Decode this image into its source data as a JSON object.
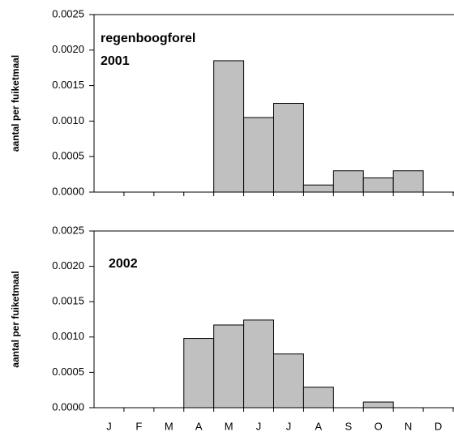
{
  "chart_data": [
    {
      "type": "bar",
      "ylabel": "aantal per fuiketmaal",
      "annotations": [
        "regenboogforel",
        "2001"
      ],
      "categories": [
        null,
        null,
        null,
        null,
        null,
        null,
        null,
        null,
        null,
        null,
        null,
        null
      ],
      "values": [
        0,
        0,
        0,
        0,
        0.00185,
        0.00105,
        0.00125,
        0.0001,
        0.0003,
        0.0002,
        0.0003,
        0
      ],
      "color": "#c0c0c0",
      "ylim": [
        0,
        0.0025
      ],
      "yticks": [
        {
          "value": 0,
          "label": "0.0000"
        },
        {
          "value": 0.0005,
          "label": "0.0005"
        },
        {
          "value": 0.001,
          "label": "0.0010"
        },
        {
          "value": 0.0015,
          "label": "0.0015"
        },
        {
          "value": 0.002,
          "label": "0.0020"
        },
        {
          "value": 0.0025,
          "label": "0.0025"
        }
      ]
    },
    {
      "type": "bar",
      "ylabel": "aantal per fuiketmaal",
      "annotations": [
        "2002"
      ],
      "categories": [
        "J",
        "F",
        "M",
        "A",
        "M",
        "J",
        "J",
        "A",
        "S",
        "O",
        "N",
        "D"
      ],
      "values": [
        0,
        0,
        0,
        0.00098,
        0.00117,
        0.00124,
        0.00076,
        0.00029,
        0,
        8e-05,
        0,
        0
      ],
      "color": "#c0c0c0",
      "ylim": [
        0,
        0.0025
      ],
      "yticks": [
        {
          "value": 0,
          "label": "0.0000"
        },
        {
          "value": 0.0005,
          "label": "0.0005"
        },
        {
          "value": 0.001,
          "label": "0.0010"
        },
        {
          "value": 0.0015,
          "label": "0.0015"
        },
        {
          "value": 0.002,
          "label": "0.0020"
        },
        {
          "value": 0.0025,
          "label": "0.0025"
        }
      ]
    }
  ]
}
